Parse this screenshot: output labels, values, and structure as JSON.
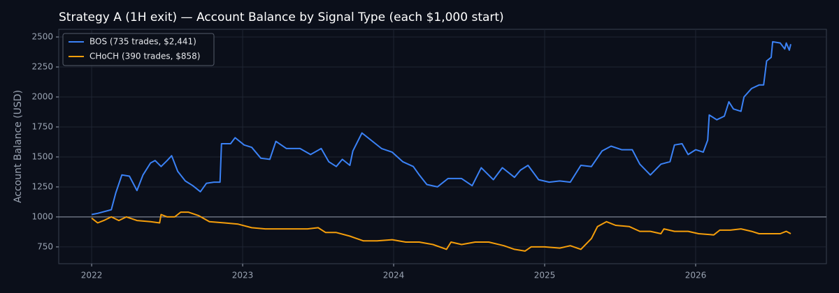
{
  "chart_data": {
    "type": "line",
    "title": "Strategy A (1H exit) — Account Balance by Signal Type (each $1,000 start)",
    "y_label": "Account Balance (USD)",
    "xlim": [
      2021.782,
      2026.866
    ],
    "xticks": [
      2022,
      2023,
      2024,
      2025,
      2026
    ],
    "ylim": [
      610,
      2564
    ],
    "yticks": [
      750,
      1000,
      1250,
      1500,
      1750,
      2000,
      2250,
      2500
    ],
    "grid": true,
    "reference_line": 1000,
    "legend": "upper-left",
    "series": [
      {
        "name": "BOS (735 trades, $2,441)",
        "color": "#3b82f6",
        "x": [
          2022.0,
          2022.04,
          2022.13,
          2022.16,
          2022.2,
          2022.25,
          2022.3,
          2022.34,
          2022.39,
          2022.42,
          2022.46,
          2022.5,
          2022.53,
          2022.57,
          2022.62,
          2022.67,
          2022.72,
          2022.76,
          2022.81,
          2022.85,
          2022.86,
          2022.92,
          2022.95,
          2023.01,
          2023.06,
          2023.12,
          2023.18,
          2023.22,
          2023.29,
          2023.38,
          2023.45,
          2023.52,
          2023.57,
          2023.62,
          2023.66,
          2023.71,
          2023.73,
          2023.79,
          2023.85,
          2023.92,
          2023.99,
          2024.06,
          2024.13,
          2024.17,
          2024.22,
          2024.29,
          2024.36,
          2024.45,
          2024.52,
          2024.58,
          2024.66,
          2024.72,
          2024.8,
          2024.84,
          2024.89,
          2024.96,
          2025.03,
          2025.1,
          2025.17,
          2025.24,
          2025.31,
          2025.38,
          2025.44,
          2025.51,
          2025.58,
          2025.63,
          2025.7,
          2025.77,
          2025.83,
          2025.86,
          2025.91,
          2025.95,
          2026.0,
          2026.05,
          2026.08,
          2026.09,
          2026.14,
          2026.19,
          2026.22,
          2026.25,
          2026.3,
          2026.32,
          2026.37,
          2026.42,
          2026.45,
          2026.47,
          2026.5,
          2026.51,
          2026.56,
          2026.59,
          2026.6,
          2026.62,
          2026.63
        ],
        "values": [
          1020,
          1030,
          1060,
          1200,
          1350,
          1340,
          1220,
          1350,
          1450,
          1470,
          1420,
          1470,
          1510,
          1380,
          1300,
          1260,
          1210,
          1280,
          1290,
          1290,
          1610,
          1610,
          1660,
          1600,
          1580,
          1490,
          1480,
          1630,
          1570,
          1570,
          1520,
          1570,
          1460,
          1420,
          1480,
          1430,
          1550,
          1700,
          1640,
          1570,
          1540,
          1460,
          1420,
          1350,
          1270,
          1250,
          1320,
          1320,
          1260,
          1410,
          1310,
          1410,
          1330,
          1390,
          1430,
          1310,
          1290,
          1300,
          1290,
          1430,
          1420,
          1550,
          1590,
          1560,
          1560,
          1440,
          1350,
          1440,
          1460,
          1600,
          1610,
          1520,
          1560,
          1540,
          1640,
          1850,
          1810,
          1840,
          1960,
          1900,
          1880,
          2000,
          2070,
          2100,
          2100,
          2300,
          2330,
          2460,
          2450,
          2400,
          2450,
          2390,
          2440
        ]
      },
      {
        "name": "CHoCH (390 trades, $858)",
        "color": "#f59e0b",
        "x": [
          2022.0,
          2022.04,
          2022.08,
          2022.13,
          2022.18,
          2022.23,
          2022.3,
          2022.39,
          2022.45,
          2022.46,
          2022.5,
          2022.55,
          2022.59,
          2022.64,
          2022.71,
          2022.78,
          2022.88,
          2022.97,
          2023.06,
          2023.15,
          2023.25,
          2023.34,
          2023.43,
          2023.5,
          2023.55,
          2023.62,
          2023.71,
          2023.8,
          2023.89,
          2023.99,
          2024.08,
          2024.17,
          2024.26,
          2024.35,
          2024.38,
          2024.45,
          2024.54,
          2024.63,
          2024.73,
          2024.8,
          2024.87,
          2024.91,
          2025.0,
          2025.1,
          2025.17,
          2025.24,
          2025.31,
          2025.35,
          2025.41,
          2025.47,
          2025.56,
          2025.63,
          2025.7,
          2025.77,
          2025.79,
          2025.86,
          2025.95,
          2026.02,
          2026.12,
          2026.16,
          2026.23,
          2026.3,
          2026.37,
          2026.42,
          2026.49,
          2026.56,
          2026.6,
          2026.63
        ],
        "values": [
          990,
          950,
          970,
          1000,
          970,
          1000,
          970,
          960,
          950,
          1020,
          1000,
          1000,
          1040,
          1040,
          1010,
          960,
          950,
          940,
          910,
          900,
          900,
          900,
          900,
          910,
          870,
          870,
          840,
          800,
          800,
          810,
          790,
          790,
          770,
          730,
          790,
          770,
          790,
          790,
          760,
          730,
          715,
          750,
          750,
          740,
          760,
          730,
          820,
          920,
          960,
          930,
          920,
          880,
          880,
          860,
          900,
          880,
          880,
          860,
          850,
          890,
          890,
          900,
          880,
          860,
          860,
          860,
          880,
          860
        ]
      }
    ]
  }
}
